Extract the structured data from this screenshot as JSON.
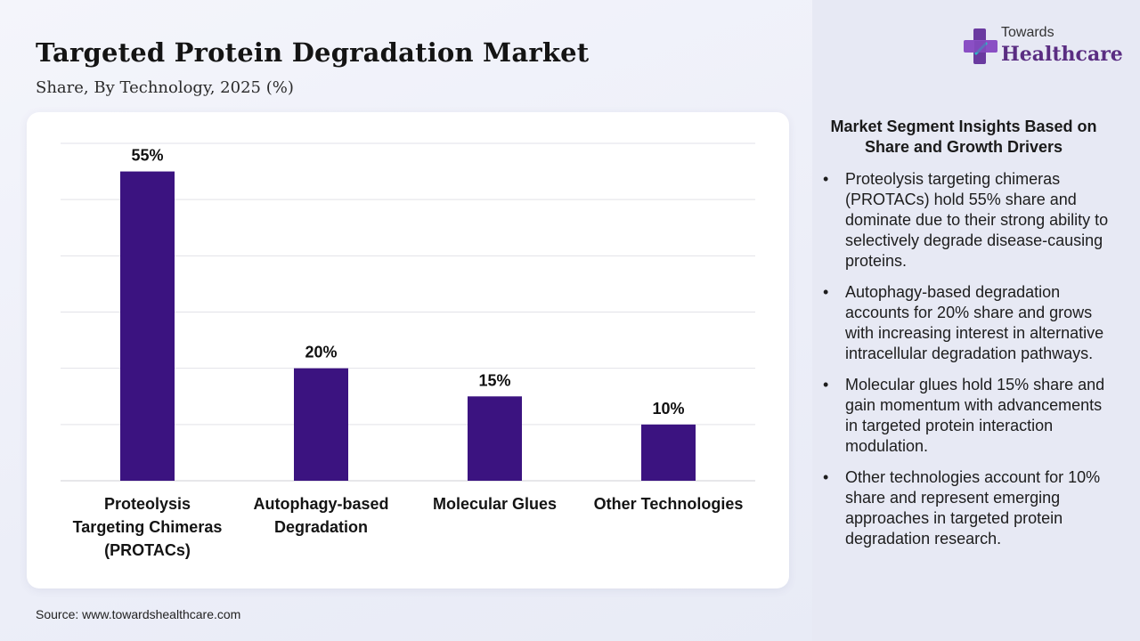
{
  "header": {
    "title": "Targeted Protein Degradation Market",
    "subtitle": "Share, By Technology, 2025 (%)"
  },
  "logo": {
    "line1": "Towards",
    "line2": "Healthcare",
    "icon": "cross-plus-icon"
  },
  "chart_data": {
    "type": "bar",
    "categories": [
      [
        "Proteolysis",
        "Targeting Chimeras",
        "(PROTACs)"
      ],
      [
        "Autophagy-based",
        "Degradation"
      ],
      [
        "Molecular Glues"
      ],
      [
        "Other Technologies"
      ]
    ],
    "values": [
      55,
      20,
      15,
      10
    ],
    "value_labels": [
      "55%",
      "20%",
      "15%",
      "10%"
    ],
    "ylim": [
      0,
      60
    ],
    "grid": true,
    "bar_color": "#3b1380",
    "title": "",
    "xlabel": "",
    "ylabel": ""
  },
  "insights": {
    "title": "Market Segment Insights Based on Share and Growth Drivers",
    "items": [
      "Proteolysis targeting chimeras (PROTACs) hold 55% share and dominate due to their strong ability to selectively degrade disease-causing proteins.",
      "Autophagy-based degradation accounts for 20% share and grows with increasing interest in alternative intracellular degradation pathways.",
      "Molecular glues hold 15% share and gain momentum with advancements in targeted protein interaction modulation.",
      "Other technologies account for 10% share and represent emerging approaches in targeted protein degradation research."
    ]
  },
  "footer": {
    "source": "Source: www.towardshealthcare.com"
  }
}
